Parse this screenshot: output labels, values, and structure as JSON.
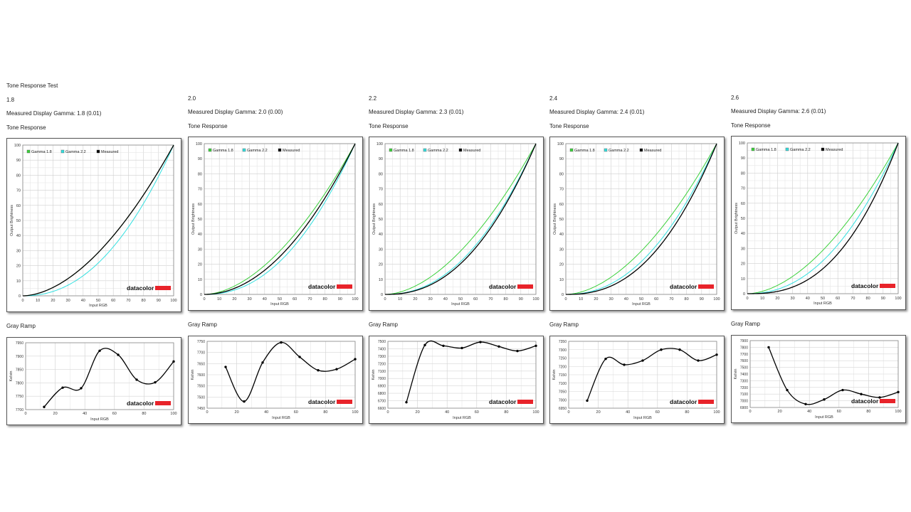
{
  "page": {
    "title": "Tone Response Test"
  },
  "common": {
    "tone_label": "Tone Response",
    "gray_label": "Gray Ramp",
    "xlabel": "Input RGB",
    "tone_ylabel": "Output Brightness",
    "gray_ylabel": "Kelvin",
    "logo": "datacolor",
    "legend": [
      "Gamma 1.8",
      "Gamma 2.2",
      "Measured"
    ],
    "colors": {
      "gamma18": "#3bd13b",
      "gamma22": "#33e0e0",
      "measured": "#000000",
      "logo_bar": "#e8232a",
      "grid": "#cccccc"
    }
  },
  "columns": [
    {
      "target": "1.8",
      "measured_text": "Measured Display Gamma: 1.8 (0.01)",
      "chart_data": [
        {
          "type": "line",
          "title": "Tone Response",
          "xlabel": "Input RGB",
          "ylabel": "Output Brightness",
          "xlim": [
            0,
            100
          ],
          "ylim": [
            0,
            100
          ],
          "xticks": [
            0,
            10,
            20,
            30,
            40,
            50,
            60,
            70,
            80,
            90,
            100
          ],
          "yticks": [
            0,
            10,
            20,
            30,
            40,
            50,
            60,
            70,
            80,
            90,
            100
          ],
          "legend_position": "top-left",
          "series": [
            {
              "name": "Gamma 1.8",
              "gamma": 1.8,
              "color": "#3bd13b"
            },
            {
              "name": "Gamma 2.2",
              "gamma": 2.2,
              "color": "#33e0e0"
            },
            {
              "name": "Measured",
              "gamma": 1.8,
              "color": "#000000"
            }
          ]
        },
        {
          "type": "line",
          "title": "Gray Ramp",
          "xlabel": "Input RGB",
          "ylabel": "Kelvin",
          "xlim": [
            0,
            100
          ],
          "ylim": [
            7700,
            7950
          ],
          "xticks": [
            0,
            20,
            40,
            60,
            80,
            100
          ],
          "yticks": [
            7700,
            7750,
            7800,
            7850,
            7900,
            7950
          ],
          "x": [
            12.5,
            25,
            37.5,
            50,
            62.5,
            75,
            87.5,
            100
          ],
          "values": [
            7710,
            7782,
            7780,
            7920,
            7905,
            7812,
            7802,
            7880
          ]
        }
      ]
    },
    {
      "target": "2.0",
      "measured_text": "Measured Display Gamma: 2.0 (0.00)",
      "chart_data": [
        {
          "type": "line",
          "title": "Tone Response",
          "xlabel": "Input RGB",
          "ylabel": "Output Brightness",
          "xlim": [
            0,
            100
          ],
          "ylim": [
            0,
            100
          ],
          "xticks": [
            0,
            10,
            20,
            30,
            40,
            50,
            60,
            70,
            80,
            90,
            100
          ],
          "yticks": [
            0,
            10,
            20,
            30,
            40,
            50,
            60,
            70,
            80,
            90,
            100
          ],
          "legend_position": "top-left",
          "series": [
            {
              "name": "Gamma 1.8",
              "gamma": 1.8,
              "color": "#3bd13b"
            },
            {
              "name": "Gamma 2.2",
              "gamma": 2.2,
              "color": "#33e0e0"
            },
            {
              "name": "Measured",
              "gamma": 2.0,
              "color": "#000000"
            }
          ]
        },
        {
          "type": "line",
          "title": "Gray Ramp",
          "xlabel": "Input RGB",
          "ylabel": "Kelvin",
          "xlim": [
            0,
            100
          ],
          "ylim": [
            7450,
            7750
          ],
          "xticks": [
            0,
            20,
            40,
            60,
            80,
            100
          ],
          "yticks": [
            7450,
            7500,
            7550,
            7600,
            7650,
            7700,
            7750
          ],
          "x": [
            12.5,
            25,
            37.5,
            50,
            62.5,
            75,
            87.5,
            100
          ],
          "values": [
            7635,
            7480,
            7655,
            7745,
            7680,
            7620,
            7625,
            7670
          ]
        }
      ]
    },
    {
      "target": "2.2",
      "measured_text": "Measured Display Gamma: 2.3 (0.01)",
      "chart_data": [
        {
          "type": "line",
          "title": "Tone Response",
          "xlabel": "Input RGB",
          "ylabel": "Output Brightness",
          "xlim": [
            0,
            100
          ],
          "ylim": [
            0,
            100
          ],
          "xticks": [
            0,
            10,
            20,
            30,
            40,
            50,
            60,
            70,
            80,
            90,
            100
          ],
          "yticks": [
            0,
            10,
            20,
            30,
            40,
            50,
            60,
            70,
            80,
            90,
            100
          ],
          "legend_position": "top-left",
          "series": [
            {
              "name": "Gamma 1.8",
              "gamma": 1.8,
              "color": "#3bd13b"
            },
            {
              "name": "Gamma 2.2",
              "gamma": 2.2,
              "color": "#33e0e0"
            },
            {
              "name": "Measured",
              "gamma": 2.3,
              "color": "#000000"
            }
          ]
        },
        {
          "type": "line",
          "title": "Gray Ramp",
          "xlabel": "Input RGB",
          "ylabel": "Kelvin",
          "xlim": [
            0,
            100
          ],
          "ylim": [
            6600,
            7500
          ],
          "xticks": [
            0,
            20,
            40,
            60,
            80,
            100
          ],
          "yticks": [
            6600,
            6700,
            6800,
            6900,
            7000,
            7100,
            7200,
            7300,
            7400,
            7500
          ],
          "x": [
            12.5,
            25,
            37.5,
            50,
            62.5,
            75,
            87.5,
            100
          ],
          "values": [
            6680,
            7450,
            7440,
            7410,
            7490,
            7430,
            7370,
            7440
          ]
        }
      ]
    },
    {
      "target": "2.4",
      "measured_text": "Measured Display Gamma: 2.4 (0.01)",
      "chart_data": [
        {
          "type": "line",
          "title": "Tone Response",
          "xlabel": "Input RGB",
          "ylabel": "Output Brightness",
          "xlim": [
            0,
            100
          ],
          "ylim": [
            0,
            100
          ],
          "xticks": [
            0,
            10,
            20,
            30,
            40,
            50,
            60,
            70,
            80,
            90,
            100
          ],
          "yticks": [
            0,
            10,
            20,
            30,
            40,
            50,
            60,
            70,
            80,
            90,
            100
          ],
          "legend_position": "top-left",
          "series": [
            {
              "name": "Gamma 1.8",
              "gamma": 1.8,
              "color": "#3bd13b"
            },
            {
              "name": "Gamma 2.2",
              "gamma": 2.2,
              "color": "#33e0e0"
            },
            {
              "name": "Measured",
              "gamma": 2.4,
              "color": "#000000"
            }
          ]
        },
        {
          "type": "line",
          "title": "Gray Ramp",
          "xlabel": "Input RGB",
          "ylabel": "Kelvin",
          "xlim": [
            0,
            100
          ],
          "ylim": [
            6950,
            7350
          ],
          "xticks": [
            0,
            20,
            40,
            60,
            80,
            100
          ],
          "yticks": [
            6950,
            7000,
            7050,
            7100,
            7150,
            7200,
            7250,
            7300,
            7350
          ],
          "x": [
            12.5,
            25,
            37.5,
            50,
            62.5,
            75,
            87.5,
            100
          ],
          "values": [
            6995,
            7245,
            7210,
            7235,
            7300,
            7300,
            7235,
            7270
          ]
        }
      ]
    },
    {
      "target": "2.6",
      "measured_text": "Measured Display Gamma: 2.6 (0.01)",
      "chart_data": [
        {
          "type": "line",
          "title": "Tone Response",
          "xlabel": "Input RGB",
          "ylabel": "Output Brightness",
          "xlim": [
            0,
            100
          ],
          "ylim": [
            0,
            100
          ],
          "xticks": [
            0,
            10,
            20,
            30,
            40,
            50,
            60,
            70,
            80,
            90,
            100
          ],
          "yticks": [
            0,
            10,
            20,
            30,
            40,
            50,
            60,
            70,
            80,
            90,
            100
          ],
          "legend_position": "top-left",
          "series": [
            {
              "name": "Gamma 1.8",
              "gamma": 1.8,
              "color": "#3bd13b"
            },
            {
              "name": "Gamma 2.2",
              "gamma": 2.2,
              "color": "#33e0e0"
            },
            {
              "name": "Measured",
              "gamma": 2.6,
              "color": "#000000"
            }
          ]
        },
        {
          "type": "line",
          "title": "Gray Ramp",
          "xlabel": "Input RGB",
          "ylabel": "Kelvin",
          "xlim": [
            0,
            100
          ],
          "ylim": [
            6900,
            7900
          ],
          "xticks": [
            0,
            20,
            40,
            60,
            80,
            100
          ],
          "yticks": [
            6900,
            7000,
            7100,
            7200,
            7300,
            7400,
            7500,
            7600,
            7700,
            7800,
            7900
          ],
          "x": [
            12.5,
            25,
            37.5,
            50,
            62.5,
            75,
            87.5,
            100
          ],
          "values": [
            7800,
            7160,
            6950,
            7020,
            7160,
            7100,
            7050,
            7130
          ]
        }
      ]
    }
  ]
}
